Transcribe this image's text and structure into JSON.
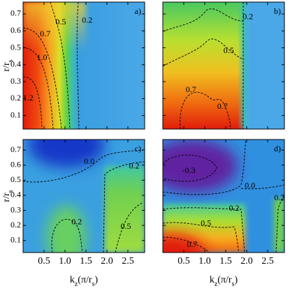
{
  "chart_data": [
    {
      "type": "contour",
      "panel_label": "a)",
      "xlim": [
        0,
        2.9
      ],
      "ylim": [
        0.02,
        0.77
      ],
      "xticks": [
        0.5,
        1,
        1.5,
        2,
        2.5
      ],
      "yticks": [
        0.1,
        0.2,
        0.3,
        0.4,
        0.5,
        0.6,
        0.7
      ],
      "ylabel": [
        {
          "text": "r/r"
        },
        {
          "text": "s",
          "sub": true
        }
      ],
      "contour_labels": [
        {
          "label": "0.5",
          "x": 0.9,
          "y": 0.65
        },
        {
          "label": "0.2",
          "x": 1.53,
          "y": 0.66
        },
        {
          "label": "0.7",
          "x": 0.53,
          "y": 0.58
        },
        {
          "label": "1.0",
          "x": 0.45,
          "y": 0.44
        },
        {
          "label": "1.2",
          "x": 0.12,
          "y": 0.2
        }
      ]
    },
    {
      "type": "contour",
      "panel_label": "b)",
      "xlim": [
        0,
        2.9
      ],
      "ylim": [
        0.02,
        0.77
      ],
      "xticks": [
        0.5,
        1,
        1.5,
        2,
        2.5
      ],
      "yticks": [
        0.1,
        0.2,
        0.3,
        0.4,
        0.5,
        0.6,
        0.7
      ],
      "contour_labels": [
        {
          "label": "0.2",
          "x": 2.03,
          "y": 0.68
        },
        {
          "label": "0.5",
          "x": 1.57,
          "y": 0.48
        },
        {
          "label": "0.7",
          "x": 0.67,
          "y": 0.25
        },
        {
          "label": "0.7",
          "x": 1.42,
          "y": 0.15
        }
      ]
    },
    {
      "type": "contour",
      "panel_label": "c)",
      "xlim": [
        0,
        2.9
      ],
      "ylim": [
        0.02,
        0.77
      ],
      "xticks": [
        0.5,
        {
          "value": 1,
          "label": "1.0"
        },
        1.5,
        {
          "value": 2,
          "label": "2.0"
        },
        2.5
      ],
      "yticks": [
        0.1,
        0.2,
        0.3,
        0.4,
        0.5,
        0.6,
        0.7
      ],
      "ylabel": [
        {
          "text": "r/r"
        },
        {
          "text": "s",
          "sub": true
        }
      ],
      "xlabel": [
        {
          "text": "k"
        },
        {
          "text": "z",
          "sub": true
        },
        {
          "text": "(π/r"
        },
        {
          "text": "s",
          "sub": true
        },
        {
          "text": ")"
        }
      ],
      "contour_labels": [
        {
          "label": "0.0",
          "x": 1.58,
          "y": 0.62
        },
        {
          "label": "0.2",
          "x": 2.65,
          "y": 0.59
        },
        {
          "label": "0.2",
          "x": 1.28,
          "y": 0.22
        },
        {
          "label": "0.5",
          "x": 2.45,
          "y": 0.19
        }
      ]
    },
    {
      "type": "contour",
      "panel_label": "d)",
      "xlim": [
        0,
        2.9
      ],
      "ylim": [
        0.02,
        0.77
      ],
      "xticks": [
        0.5,
        {
          "value": 1,
          "label": "1.0"
        },
        1.5,
        {
          "value": 2,
          "label": "2.0"
        },
        2.5
      ],
      "yticks": [
        0.1,
        0.2,
        0.3,
        0.4,
        0.5,
        0.6,
        0.7
      ],
      "xlabel": [
        {
          "text": "k"
        },
        {
          "text": "z",
          "sub": true
        },
        {
          "text": "(π/r"
        },
        {
          "text": "s",
          "sub": true
        },
        {
          "text": ")"
        }
      ],
      "contour_labels": [
        {
          "label": "-0.3",
          "x": 0.62,
          "y": 0.56
        },
        {
          "label": "0.0",
          "x": 2.08,
          "y": 0.46
        },
        {
          "label": "0.2",
          "x": 2.78,
          "y": 0.38
        },
        {
          "label": "0.2",
          "x": 1.7,
          "y": 0.31
        },
        {
          "label": "0.5",
          "x": 1.03,
          "y": 0.21
        },
        {
          "label": "0.7",
          "x": 0.7,
          "y": 0.07
        }
      ]
    }
  ]
}
